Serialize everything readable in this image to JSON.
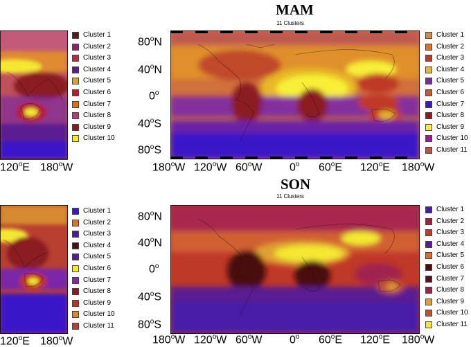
{
  "panels": [
    {
      "id": "left-top",
      "legend": [
        {
          "label": "Cluster 1",
          "color": "#5a1a10"
        },
        {
          "label": "Cluster 2",
          "color": "#8a2468"
        },
        {
          "label": "Cluster 3",
          "color": "#b23040"
        },
        {
          "label": "Cluster 4",
          "color": "#5a1a90"
        },
        {
          "label": "Cluster 5",
          "color": "#d8a030"
        },
        {
          "label": "Cluster 6",
          "color": "#b81c30"
        },
        {
          "label": "Cluster 7",
          "color": "#e0701c"
        },
        {
          "label": "Cluster 8",
          "color": "#b04070"
        },
        {
          "label": "Cluster 9",
          "color": "#8a1a20"
        },
        {
          "label": "Cluster 10",
          "color": "#f4e830"
        }
      ],
      "lon_ticks": [
        "120°E",
        "180°W"
      ]
    },
    {
      "id": "mam",
      "title": "MAM",
      "subtitle": "11 Clusters",
      "lat_ticks": [
        "80°N",
        "40°N",
        "0°",
        "40°S",
        "80°S"
      ],
      "lon_ticks": [
        "180°W",
        "120°W",
        "60°W",
        "0°",
        "60°E",
        "120°E",
        "180°W"
      ],
      "legend": [
        {
          "label": "Cluster 1",
          "color": "#d88a40"
        },
        {
          "label": "Cluster 2",
          "color": "#e07020"
        },
        {
          "label": "Cluster 3",
          "color": "#c03828"
        },
        {
          "label": "Cluster 4",
          "color": "#e8b828"
        },
        {
          "label": "Cluster 5",
          "color": "#7a28a8"
        },
        {
          "label": "Cluster 6",
          "color": "#d05028"
        },
        {
          "label": "Cluster 7",
          "color": "#3a18c8"
        },
        {
          "label": "Cluster 8",
          "color": "#8a1a20"
        },
        {
          "label": "Cluster 9",
          "color": "#f8f038"
        },
        {
          "label": "Cluster 10",
          "color": "#a01890"
        },
        {
          "label": "Cluster 11",
          "color": "#c05040"
        }
      ]
    },
    {
      "id": "left-bottom",
      "legend": [
        {
          "label": "Cluster 1",
          "color": "#3a18c8"
        },
        {
          "label": "Cluster 2",
          "color": "#e07020"
        },
        {
          "label": "Cluster 3",
          "color": "#4a1aa0"
        },
        {
          "label": "Cluster 4",
          "color": "#4a1010"
        },
        {
          "label": "Cluster 5",
          "color": "#5a1a90"
        },
        {
          "label": "Cluster 6",
          "color": "#f4e830"
        },
        {
          "label": "Cluster 7",
          "color": "#8a28a8"
        },
        {
          "label": "Cluster 8",
          "color": "#8a1a20"
        },
        {
          "label": "Cluster 9",
          "color": "#c03020"
        },
        {
          "label": "Cluster 10",
          "color": "#d88a30"
        },
        {
          "label": "Cluster 11",
          "color": "#b84030"
        }
      ],
      "lon_ticks": [
        "120°E",
        "180°W"
      ]
    },
    {
      "id": "son",
      "title": "SON",
      "subtitle": "11 Clusters",
      "lat_ticks": [
        "80°N",
        "40°N",
        "0°",
        "40°S",
        "80°S"
      ],
      "lon_ticks": [
        "180°W",
        "120°W",
        "60°W",
        "0°",
        "60°E",
        "120°E",
        "180°W"
      ],
      "legend": [
        {
          "label": "Cluster 1",
          "color": "#4a1aa8"
        },
        {
          "label": "Cluster 2",
          "color": "#a82040"
        },
        {
          "label": "Cluster 3",
          "color": "#c03828"
        },
        {
          "label": "Cluster 4",
          "color": "#5a1a90"
        },
        {
          "label": "Cluster 5",
          "color": "#d87030"
        },
        {
          "label": "Cluster 6",
          "color": "#4a1010"
        },
        {
          "label": "Cluster 7",
          "color": "#5a1020"
        },
        {
          "label": "Cluster 8",
          "color": "#a02050"
        },
        {
          "label": "Cluster 9",
          "color": "#e0a030"
        },
        {
          "label": "Cluster 10",
          "color": "#c05030"
        },
        {
          "label": "Cluster 11",
          "color": "#f4e830"
        }
      ]
    }
  ]
}
